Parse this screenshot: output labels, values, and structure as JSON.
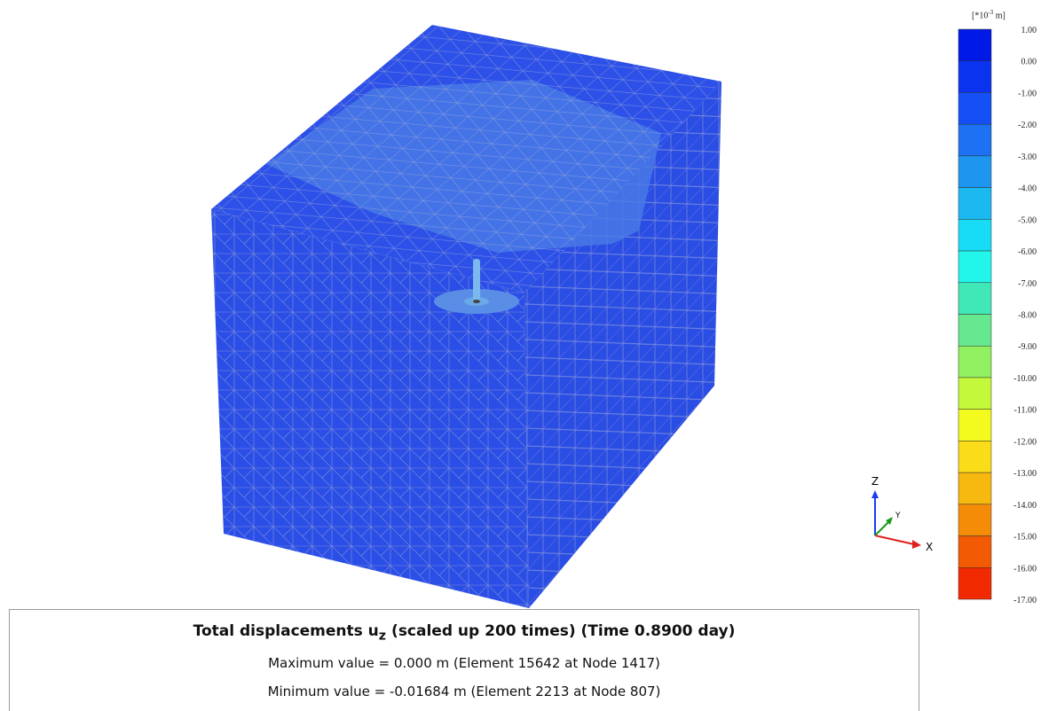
{
  "legend": {
    "unit": [
      "[*10",
      "-3",
      "m]"
    ],
    "labels": [
      "1.00",
      "0.00",
      "-1.00",
      "-2.00",
      "-3.00",
      "-4.00",
      "-5.00",
      "-6.00",
      "-7.00",
      "-8.00",
      "-9.00",
      "-10.00",
      "-11.00",
      "-12.00",
      "-13.00",
      "-14.00",
      "-15.00",
      "-16.00",
      "-17.00"
    ],
    "colors": [
      "#0019e6",
      "#0a33f0",
      "#1450f5",
      "#1c72f2",
      "#1e95ee",
      "#1cb8f0",
      "#18dcf5",
      "#22f5ea",
      "#40e8b8",
      "#66e890",
      "#90f060",
      "#c4f83a",
      "#f2fa1e",
      "#fadc18",
      "#f7b810",
      "#f58c08",
      "#f25a04",
      "#f22a02"
    ]
  },
  "axes": {
    "z": "Z",
    "y": "Y",
    "x": "X"
  },
  "caption": {
    "title": [
      "Total displacements u",
      "z",
      "(scaled up 200 times) (Time 0.8900 day)"
    ],
    "max": "Maximum value = 0.000 m (Element 15642 at Node 1417)",
    "min": "Minimum value = -0.01684 m (Element 2213 at Node 807)"
  }
}
